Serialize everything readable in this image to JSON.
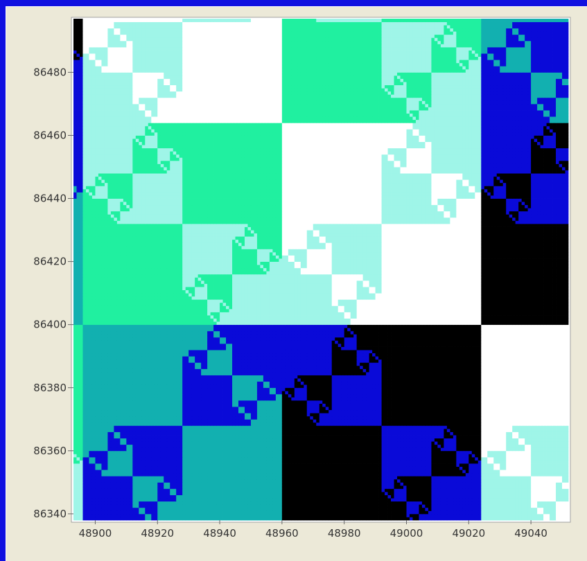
{
  "chart_data": {
    "type": "heatmap",
    "title": "",
    "xlabel": "",
    "ylabel": "",
    "xlim": [
      48893,
      49052
    ],
    "ylim": [
      86338,
      86497
    ],
    "x_ticks": [
      "48900",
      "48920",
      "48940",
      "48960",
      "48980",
      "49000",
      "49020",
      "49040"
    ],
    "y_ticks": [
      "86340",
      "86360",
      "86380",
      "86400",
      "86420",
      "86440",
      "86460",
      "86480"
    ],
    "cell_size": 1,
    "colormap": [
      "#000000",
      "#0a0ad8",
      "#12b0b0",
      "#20f0a0",
      "#9ff5e8",
      "#ffffff"
    ],
    "pattern": "bitwise-xor of x and y coordinates, quantized into 6 color levels"
  }
}
